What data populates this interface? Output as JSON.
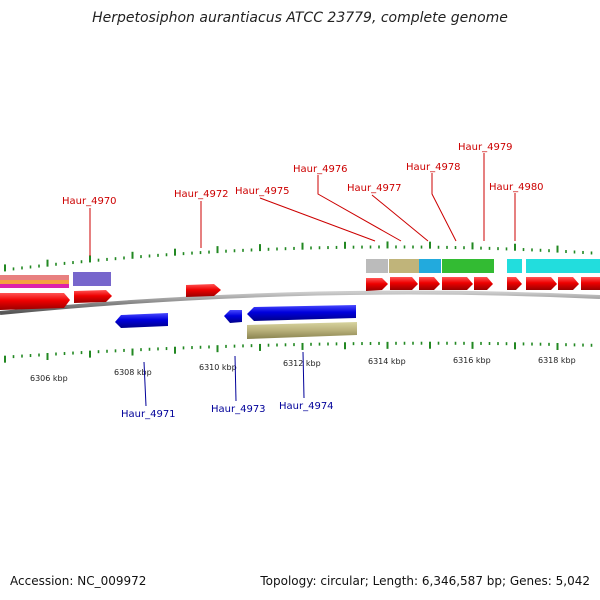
{
  "title": "Herpetosiphon aurantiacus ATCC 23779, complete genome",
  "footer": {
    "accession": "Accession: NC_009972",
    "summary": "Topology: circular; Length: 6,346,587 bp; Genes: 5,042"
  },
  "colors": {
    "forward_gene": "#ee0000",
    "reverse_gene": "#0000dd",
    "forward_label": "#cc0000",
    "reverse_label": "#000099",
    "tick": "#228822",
    "backbone": "#888888"
  },
  "scale_labels": [
    "6306 kbp",
    "6308 kbp",
    "6310 kbp",
    "6312 kbp",
    "6314 kbp",
    "6316 kbp",
    "6318 kbp"
  ],
  "forward_gene_labels": [
    "Haur_4970",
    "Haur_4972",
    "Haur_4975",
    "Haur_4976",
    "Haur_4977",
    "Haur_4978",
    "Haur_4979",
    "Haur_4980"
  ],
  "reverse_gene_labels": [
    "Haur_4971",
    "Haur_4973",
    "Haur_4974"
  ]
}
